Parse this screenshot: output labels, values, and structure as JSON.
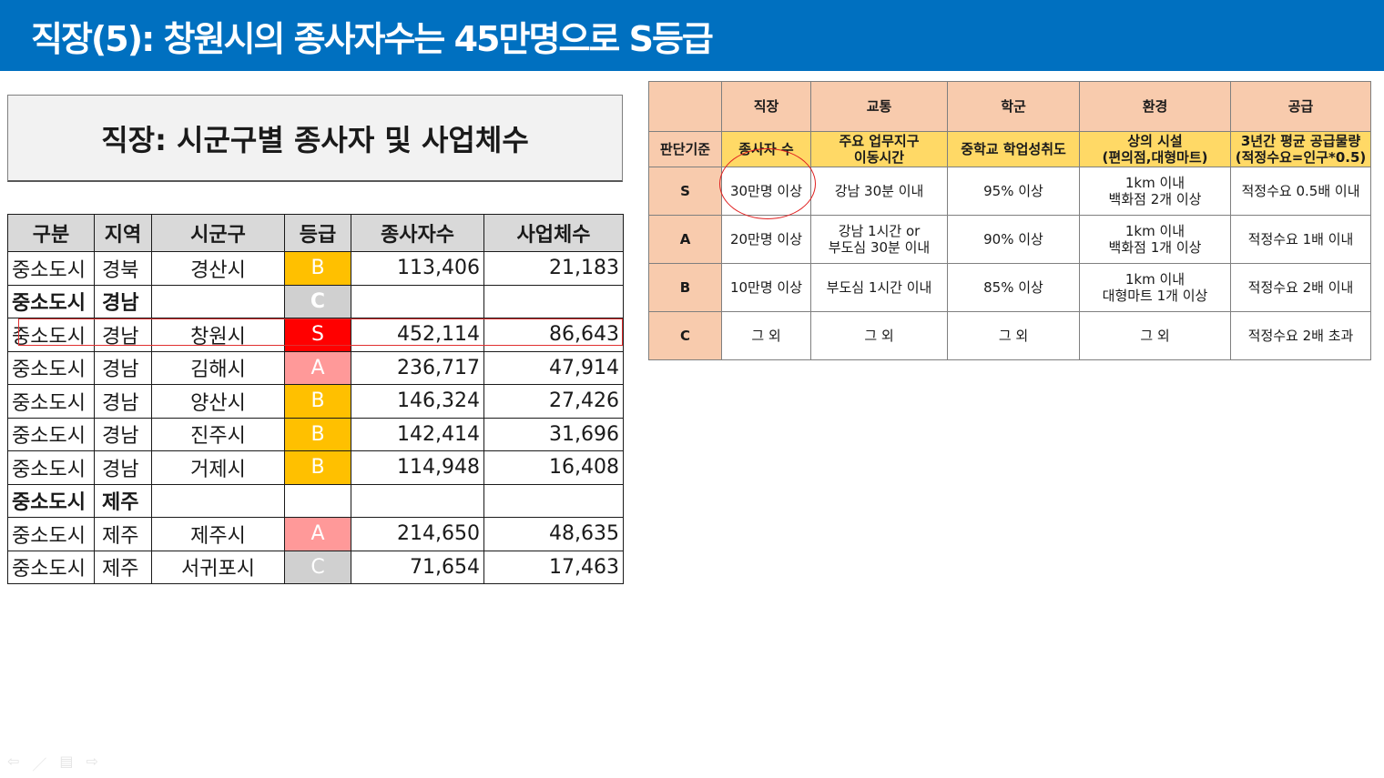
{
  "header": {
    "title": "직장(5): 창원시의 종사자수는 45만명으로 S등급"
  },
  "left": {
    "title": "직장: 시군구별 종사자 및 사업체수",
    "columns": [
      "구분",
      "지역",
      "시군구",
      "등급",
      "종사자수",
      "사업체수"
    ],
    "rows": [
      {
        "division": "중소도시",
        "region": "경북",
        "city": "경산시",
        "grade": "B",
        "employees": "113,406",
        "businesses": "21,183",
        "bold": false
      },
      {
        "division": "중소도시",
        "region": "경남",
        "city": "",
        "grade": "C",
        "employees": "",
        "businesses": "",
        "bold": true
      },
      {
        "division": "중소도시",
        "region": "경남",
        "city": "창원시",
        "grade": "S",
        "employees": "452,114",
        "businesses": "86,643",
        "bold": false
      },
      {
        "division": "중소도시",
        "region": "경남",
        "city": "김해시",
        "grade": "A",
        "employees": "236,717",
        "businesses": "47,914",
        "bold": false
      },
      {
        "division": "중소도시",
        "region": "경남",
        "city": "양산시",
        "grade": "B",
        "employees": "146,324",
        "businesses": "27,426",
        "bold": false
      },
      {
        "division": "중소도시",
        "region": "경남",
        "city": "진주시",
        "grade": "B",
        "employees": "142,414",
        "businesses": "31,696",
        "bold": false
      },
      {
        "division": "중소도시",
        "region": "경남",
        "city": "거제시",
        "grade": "B",
        "employees": "114,948",
        "businesses": "16,408",
        "bold": false
      },
      {
        "division": "중소도시",
        "region": "제주",
        "city": "",
        "grade": "",
        "employees": "",
        "businesses": "",
        "bold": true
      },
      {
        "division": "중소도시",
        "region": "제주",
        "city": "제주시",
        "grade": "A",
        "employees": "214,650",
        "businesses": "48,635",
        "bold": false
      },
      {
        "division": "중소도시",
        "region": "제주",
        "city": "서귀포시",
        "grade": "C",
        "employees": "71,654",
        "businesses": "17,463",
        "bold": false
      }
    ]
  },
  "grade_colors": {
    "S": "#ff0000",
    "A": "#ff9999",
    "B": "#ffc000",
    "C": "#d0d0d0"
  },
  "criteria": {
    "headers": [
      "",
      "직장",
      "교통",
      "학군",
      "환경",
      "공급"
    ],
    "criteria_row": [
      "판단기준",
      "종사자 수",
      "주요 업무지구\n이동시간",
      "중학교 학업성취도",
      "상의 시설\n(편의점,대형마트)",
      "3년간 평균 공급물량\n(적정수요=인구*0.5)"
    ],
    "grades": [
      [
        "S",
        "30만명 이상",
        "강남 30분 이내",
        "95% 이상",
        "1km 이내\n백화점 2개 이상",
        "적정수요 0.5배 이내"
      ],
      [
        "A",
        "20만명 이상",
        "강남 1시간 or\n부도심 30분 이내",
        "90% 이상",
        "1km 이내\n백화점 1개 이상",
        "적정수요 1배 이내"
      ],
      [
        "B",
        "10만명 이상",
        "부도심 1시간 이내",
        "85% 이상",
        "1km 이내\n대형마트 1개 이상",
        "적정수요 2배 이내"
      ],
      [
        "C",
        "그 외",
        "그 외",
        "그 외",
        "그 외",
        "적정수요 2배 초과"
      ]
    ]
  },
  "nav": {
    "icons": [
      "arrow-left-icon",
      "pen-icon",
      "menu-icon",
      "arrow-right-icon"
    ],
    "glyphs": [
      "⇦",
      "／",
      "▤",
      "⇨"
    ]
  }
}
